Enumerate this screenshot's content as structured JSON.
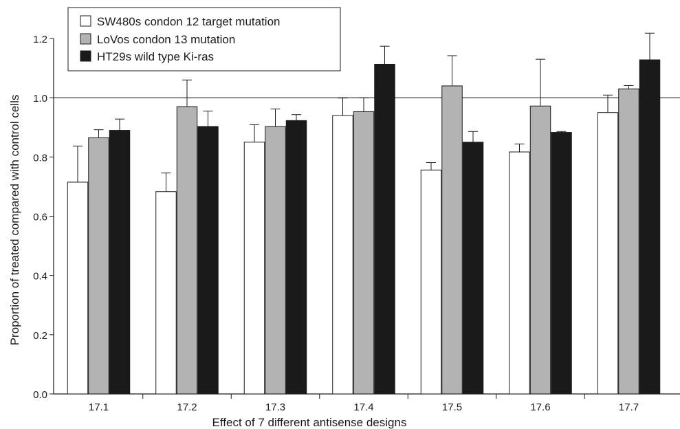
{
  "chart_data": {
    "type": "bar",
    "title": "",
    "xlabel": "Effect of 7 different antisense designs",
    "ylabel": "Proportion of treated compared with control cells",
    "ylim": [
      0,
      1.2
    ],
    "yticks": [
      "0.0",
      "0.2",
      "0.4",
      "0.6",
      "0.8",
      "1.0",
      "1.2"
    ],
    "reference_line": 1.0,
    "grid": false,
    "legend_position": "top-left",
    "categories": [
      "17.1",
      "17.2",
      "17.3",
      "17.4",
      "17.5",
      "17.6",
      "17.7"
    ],
    "series": [
      {
        "name": "SW480s condon 12 target mutation",
        "color": "#ffffff",
        "values": [
          0.715,
          0.683,
          0.85,
          0.94,
          0.756,
          0.817,
          0.95
        ],
        "errors": [
          0.122,
          0.063,
          0.059,
          0.059,
          0.025,
          0.027,
          0.059
        ]
      },
      {
        "name": "LoVos condon 13 mutation",
        "color": "#b3b3b3",
        "values": [
          0.865,
          0.97,
          0.903,
          0.953,
          1.04,
          0.972,
          1.03
        ],
        "errors": [
          0.027,
          0.09,
          0.059,
          0.047,
          0.102,
          0.158,
          0.011
        ]
      },
      {
        "name": "HT29s wild type Ki-ras",
        "color": "#1a1a1a",
        "values": [
          0.89,
          0.903,
          0.923,
          1.113,
          0.85,
          0.883,
          1.128
        ],
        "errors": [
          0.038,
          0.052,
          0.02,
          0.061,
          0.036,
          0.003,
          0.09
        ]
      }
    ]
  }
}
